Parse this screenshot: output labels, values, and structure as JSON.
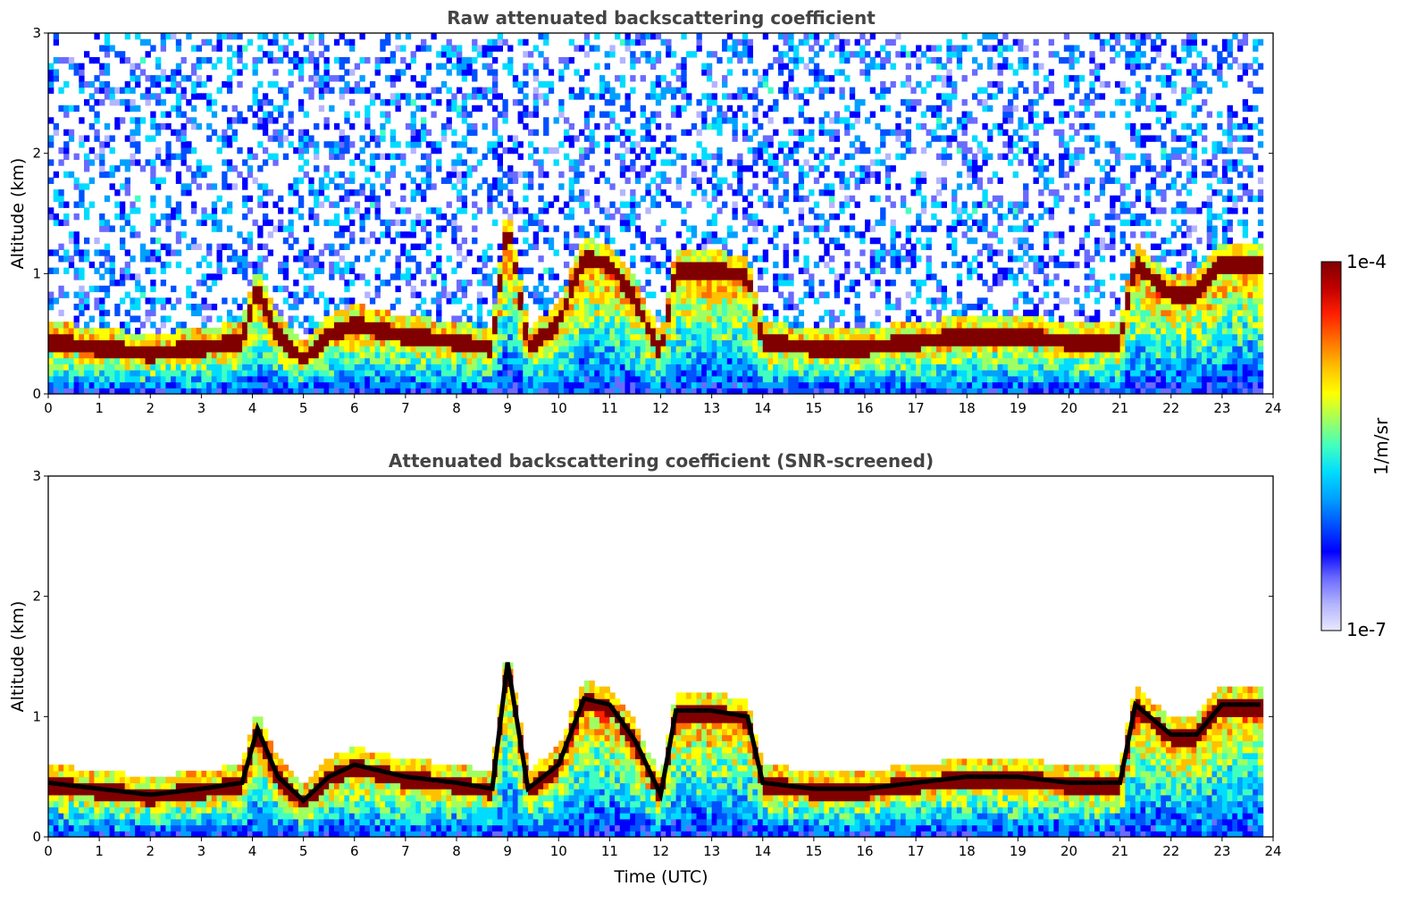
{
  "colorbar": {
    "max_label": "1e-4",
    "min_label": "1e-7",
    "unit_label": "1/m/sr",
    "colormap": [
      "#e8e8ff",
      "#b4b4ff",
      "#6a6aff",
      "#0000ff",
      "#0050ff",
      "#00a0ff",
      "#00dcff",
      "#40ffc0",
      "#a0ff60",
      "#ffff00",
      "#ffc000",
      "#ff7000",
      "#ff2000",
      "#c00000",
      "#800000"
    ]
  },
  "chart_data": [
    {
      "type": "heatmap",
      "title": "Raw attenuated backscattering coefficient",
      "xlabel": "",
      "ylabel": "Altitude (km)",
      "xlim": [
        0,
        24
      ],
      "ylim": [
        0,
        3
      ],
      "x_ticks": [
        "0",
        "1",
        "2",
        "3",
        "4",
        "5",
        "6",
        "7",
        "8",
        "9",
        "10",
        "11",
        "12",
        "13",
        "14",
        "15",
        "16",
        "17",
        "18",
        "19",
        "20",
        "21",
        "22",
        "23",
        "24"
      ],
      "y_ticks": [
        "0",
        "1",
        "2",
        "3"
      ],
      "grid": false,
      "screened": false,
      "layer_top_km": {
        "x": [
          0,
          1,
          2,
          3,
          3.8,
          4.1,
          4.5,
          5,
          5.5,
          6,
          7,
          8,
          8.7,
          9,
          9.4,
          10,
          10.5,
          11,
          11.5,
          12,
          12.3,
          13,
          13.7,
          14,
          15,
          16,
          17,
          18,
          19,
          20,
          21,
          21.3,
          22,
          22.5,
          23,
          23.5,
          23.8
        ],
        "value": [
          0.45,
          0.4,
          0.35,
          0.4,
          0.45,
          0.9,
          0.5,
          0.3,
          0.5,
          0.6,
          0.5,
          0.45,
          0.4,
          1.45,
          0.4,
          0.6,
          1.15,
          1.1,
          0.8,
          0.35,
          1.05,
          1.05,
          1.0,
          0.45,
          0.4,
          0.4,
          0.45,
          0.5,
          0.5,
          0.45,
          0.45,
          1.1,
          0.85,
          0.85,
          1.1,
          1.1,
          1.1
        ]
      }
    },
    {
      "type": "heatmap",
      "title": "Attenuated backscattering coefficient (SNR-screened)",
      "xlabel": "Time (UTC)",
      "ylabel": "Altitude (km)",
      "xlim": [
        0,
        24
      ],
      "ylim": [
        0,
        3
      ],
      "x_ticks": [
        "0",
        "1",
        "2",
        "3",
        "4",
        "5",
        "6",
        "7",
        "8",
        "9",
        "10",
        "11",
        "12",
        "13",
        "14",
        "15",
        "16",
        "17",
        "18",
        "19",
        "20",
        "21",
        "22",
        "23",
        "24"
      ],
      "y_ticks": [
        "0",
        "1",
        "2",
        "3"
      ],
      "grid": false,
      "screened": true,
      "layer_top_km": {
        "x": [
          0,
          1,
          2,
          3,
          3.8,
          4.1,
          4.5,
          5,
          5.5,
          6,
          7,
          8,
          8.7,
          9,
          9.4,
          10,
          10.5,
          11,
          11.5,
          12,
          12.3,
          13,
          13.7,
          14,
          15,
          16,
          17,
          18,
          19,
          20,
          21,
          21.3,
          22,
          22.5,
          23,
          23.5,
          23.8
        ],
        "value": [
          0.45,
          0.4,
          0.35,
          0.4,
          0.45,
          0.9,
          0.5,
          0.3,
          0.5,
          0.6,
          0.5,
          0.45,
          0.4,
          1.45,
          0.4,
          0.6,
          1.15,
          1.1,
          0.8,
          0.35,
          1.05,
          1.05,
          1.0,
          0.45,
          0.4,
          0.4,
          0.45,
          0.5,
          0.5,
          0.45,
          0.45,
          1.1,
          0.85,
          0.85,
          1.1,
          1.1,
          1.1
        ]
      }
    }
  ]
}
